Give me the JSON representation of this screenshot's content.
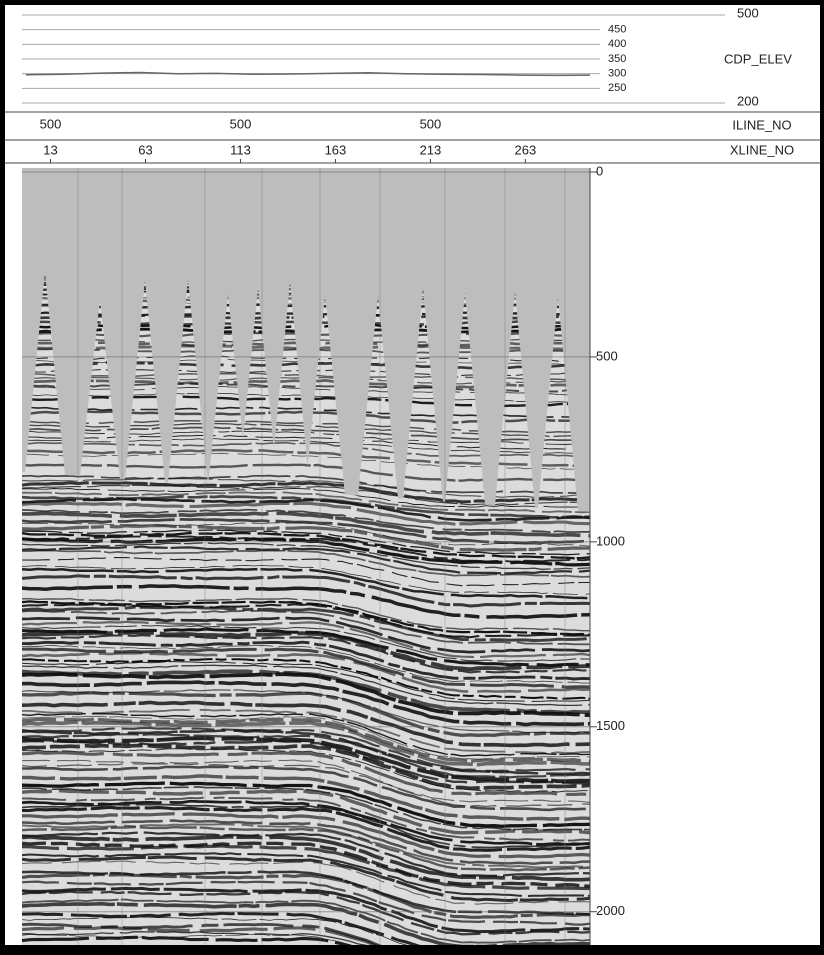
{
  "elevation_track": {
    "label": "CDP_ELEV",
    "ylim": [
      200,
      500
    ],
    "yticks": [
      200,
      250,
      300,
      350,
      400,
      450,
      500
    ],
    "x": [
      0,
      20,
      40,
      60,
      80,
      100,
      120,
      140,
      160,
      180,
      200,
      220,
      240,
      260,
      280,
      297
    ],
    "values": [
      296,
      298,
      302,
      304,
      300,
      301,
      298,
      299,
      301,
      303,
      300,
      298,
      297,
      295,
      294,
      295
    ]
  },
  "iline_row": {
    "label": "ILINE_NO",
    "labels": [
      500,
      500,
      500
    ]
  },
  "xline_row": {
    "label": "XLINE_NO",
    "xlim": [
      -2,
      297
    ],
    "xticks": [
      13,
      63,
      113,
      163,
      213,
      263
    ]
  },
  "section": {
    "ylim": [
      0,
      2090
    ],
    "yticks": [
      0,
      500,
      1000,
      1500,
      2000
    ]
  }
}
